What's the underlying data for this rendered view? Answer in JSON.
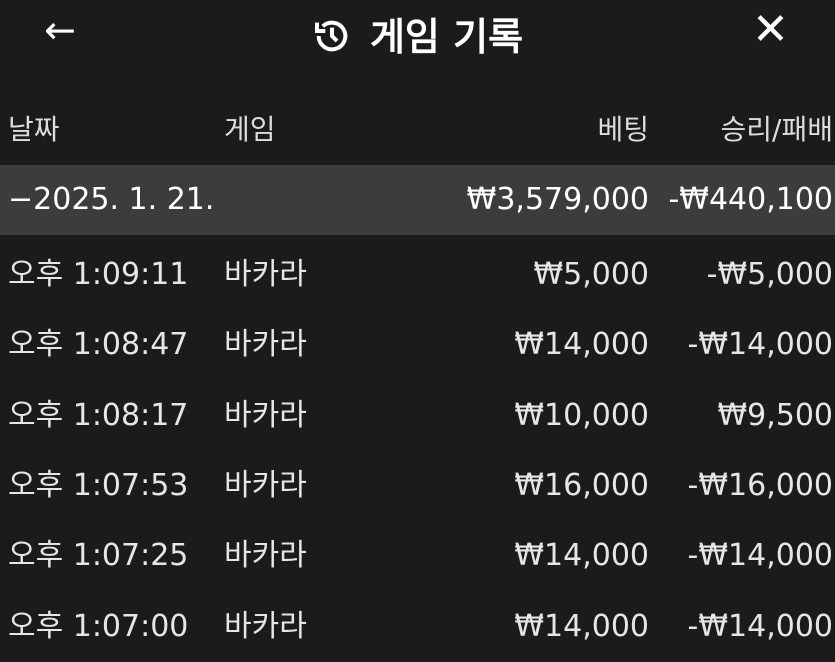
{
  "header": {
    "title": "게임 기록",
    "back_icon": "arrow-left-icon",
    "history_icon": "history-icon",
    "close_icon": "close-icon"
  },
  "columns": {
    "date": "날짜",
    "game": "게임",
    "bet": "베팅",
    "result": "승리/패배"
  },
  "group": {
    "toggle": "−",
    "date": "2025. 1. 21.",
    "bet": "₩3,579,000",
    "result": "-₩440,100"
  },
  "rows": [
    {
      "time": "오후 1:09:11",
      "game": "바카라",
      "bet": "₩5,000",
      "result": "-₩5,000"
    },
    {
      "time": "오후 1:08:47",
      "game": "바카라",
      "bet": "₩14,000",
      "result": "-₩14,000"
    },
    {
      "time": "오후 1:08:17",
      "game": "바카라",
      "bet": "₩10,000",
      "result": "₩9,500"
    },
    {
      "time": "오후 1:07:53",
      "game": "바카라",
      "bet": "₩16,000",
      "result": "-₩16,000"
    },
    {
      "time": "오후 1:07:25",
      "game": "바카라",
      "bet": "₩14,000",
      "result": "-₩14,000"
    },
    {
      "time": "오후 1:07:00",
      "game": "바카라",
      "bet": "₩14,000",
      "result": "-₩14,000"
    }
  ]
}
